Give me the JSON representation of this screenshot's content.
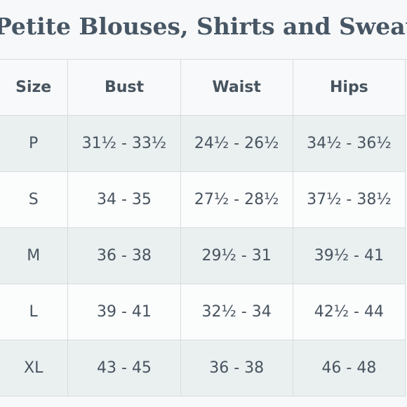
{
  "title": "Petite Blouses, Shirts and Sweaters",
  "table": {
    "headers": [
      "Size",
      "Bust",
      "Waist",
      "Hips"
    ],
    "rows": [
      [
        "P",
        "31½ - 33½",
        "24½ - 26½",
        "34½ - 36½"
      ],
      [
        "S",
        "34 - 35",
        "27½ - 28½",
        "37½ - 38½"
      ],
      [
        "M",
        "36 - 38",
        "29½ - 31",
        "39½ - 41"
      ],
      [
        "L",
        "39 - 41",
        "32½ - 34",
        "42½ - 44"
      ],
      [
        "XL",
        "43 - 45",
        "36 - 38",
        "46 - 48"
      ]
    ]
  },
  "colors": {
    "text": "#47545f",
    "title": "#475664",
    "row_shade": "#eaeff0",
    "row_plain": "#fbfcfc",
    "border": "#d7dcdf"
  }
}
